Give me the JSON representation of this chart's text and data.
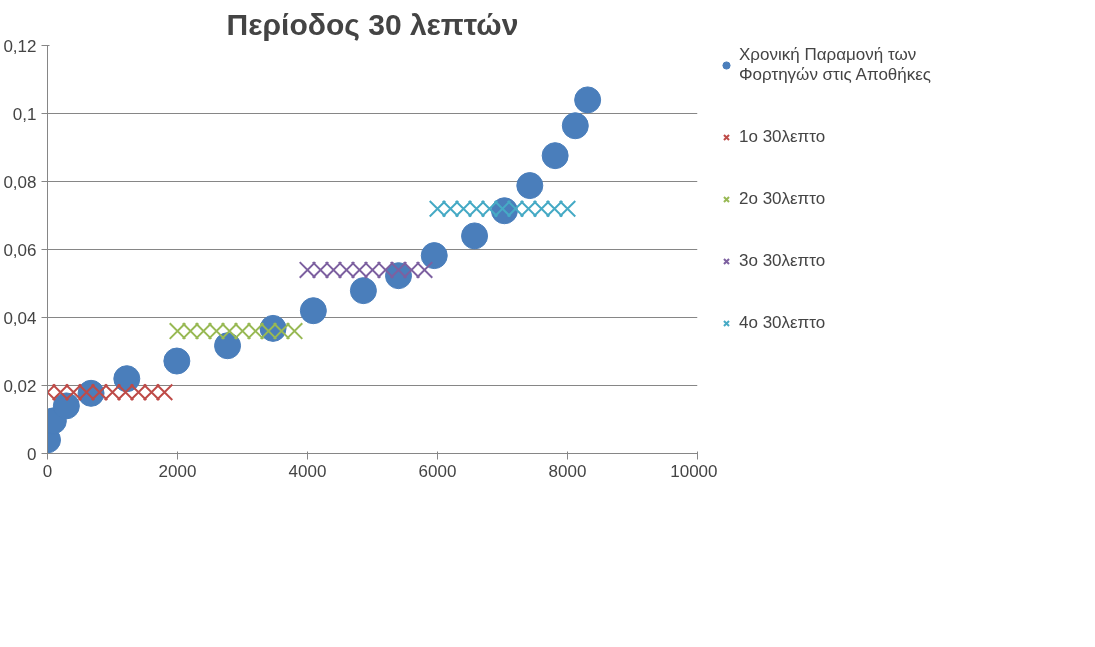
{
  "chart_data": {
    "type": "scatter",
    "title": "Περίοδος 30 λεπτών",
    "xlim": [
      0,
      10000
    ],
    "xticks": [
      0,
      2000,
      4000,
      6000,
      8000,
      10000
    ],
    "ylim": [
      0,
      0.12
    ],
    "yticks": [
      0,
      {
        "value": 0.02,
        "label": "0,02"
      },
      {
        "value": 0.04,
        "label": "0,04"
      },
      {
        "value": 0.06,
        "label": "0,06"
      },
      {
        "value": 0.08,
        "label": "0,08"
      },
      {
        "value": 0.1,
        "label": "0,1"
      },
      {
        "value": 0.12,
        "label": "0,12"
      }
    ],
    "grid": "y",
    "legend": "right",
    "series": [
      {
        "name": "Χρονική Παραμονή των Φορτηγών στις Αποθήκες",
        "color": "#4a7ebb",
        "marker": "circle",
        "x": [
          0,
          90,
          290,
          670,
          1220,
          1990,
          2770,
          3470,
          4090,
          4860,
          5400,
          5950,
          6570,
          7030,
          7420,
          7810,
          8120,
          8310
        ],
        "values": [
          0.004,
          0.0096,
          0.014,
          0.0177,
          0.022,
          0.0272,
          0.0317,
          0.0368,
          0.042,
          0.0479,
          0.0523,
          0.0582,
          0.064,
          0.0714,
          0.0788,
          0.0876,
          0.0964,
          0.104
        ]
      },
      {
        "name": "1ο 30λεπτο",
        "color": "#be4b48",
        "marker": "cross",
        "x": [
          0,
          200,
          400,
          600,
          800,
          1000,
          1200,
          1400,
          1600,
          1800
        ],
        "values": [
          0.018,
          0.018,
          0.018,
          0.018,
          0.018,
          0.018,
          0.018,
          0.018,
          0.018,
          0.018
        ]
      },
      {
        "name": "2ο 30λεπτο",
        "color": "#98b954",
        "marker": "cross",
        "x": [
          2000,
          2200,
          2400,
          2600,
          2800,
          3000,
          3200,
          3400,
          3600,
          3800
        ],
        "values": [
          0.036,
          0.036,
          0.036,
          0.036,
          0.036,
          0.036,
          0.036,
          0.036,
          0.036,
          0.036
        ]
      },
      {
        "name": "3ο 30λεπτο",
        "color": "#7d60a0",
        "marker": "cross",
        "x": [
          4000,
          4200,
          4400,
          4600,
          4800,
          5000,
          5200,
          5400,
          5600,
          5800
        ],
        "values": [
          0.054,
          0.054,
          0.054,
          0.054,
          0.054,
          0.054,
          0.054,
          0.054,
          0.054,
          0.054
        ]
      },
      {
        "name": "4ο 30λεπτο",
        "color": "#46aac5",
        "marker": "cross",
        "x": [
          6000,
          6200,
          6400,
          6600,
          6800,
          7000,
          7200,
          7400,
          7600,
          7800,
          8000
        ],
        "values": [
          0.072,
          0.072,
          0.072,
          0.072,
          0.072,
          0.072,
          0.072,
          0.072,
          0.072,
          0.072,
          0.072
        ]
      }
    ]
  }
}
